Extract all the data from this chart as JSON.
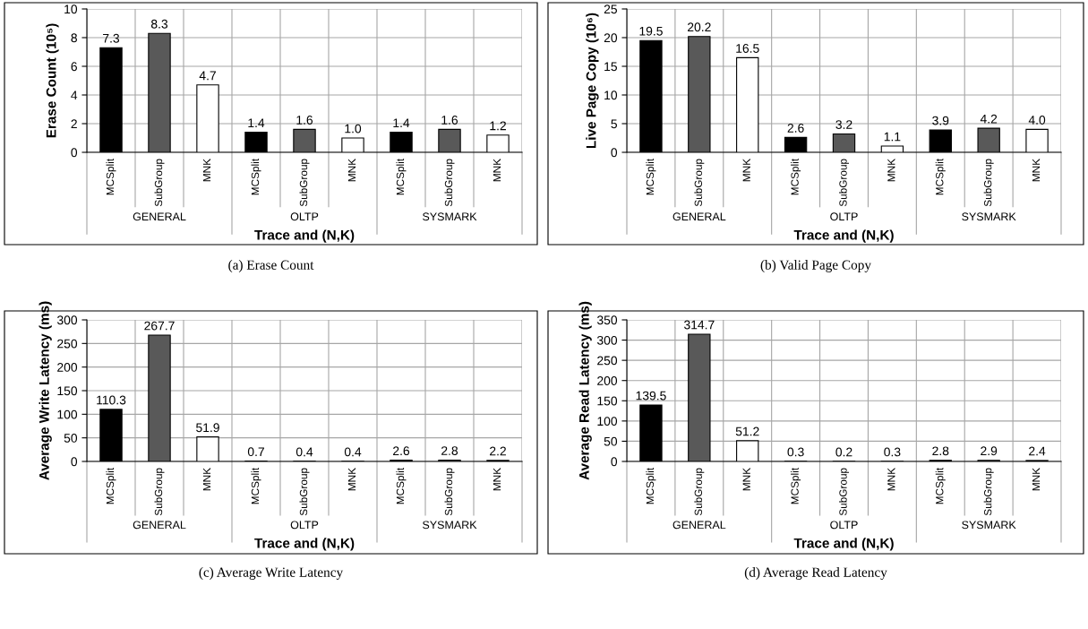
{
  "chart_data": [
    {
      "type": "bar",
      "categories": [
        "MCSplit",
        "SubGroup",
        "MNK",
        "MCSplit",
        "SubGroup",
        "MNK",
        "MCSplit",
        "SubGroup",
        "MNK"
      ],
      "values": [
        7.3,
        8.3,
        4.7,
        1.4,
        1.6,
        1.0,
        1.4,
        1.6,
        1.2
      ],
      "data_labels": true,
      "value_labels": [
        "7.3",
        "8.3",
        "4.7",
        "1.4",
        "1.6",
        "1.0",
        "1.4",
        "1.6",
        "1.2"
      ],
      "colors": [
        "#000000",
        "#595959",
        "#ffffff",
        "#000000",
        "#595959",
        "#ffffff",
        "#000000",
        "#595959",
        "#ffffff"
      ],
      "ylabel": "Erase Count (10⁵)",
      "xlabel": "Trace and (N,K)",
      "ylim": [
        0,
        10
      ],
      "yticks": [
        0,
        2,
        4,
        6,
        8,
        10
      ],
      "grid": true,
      "annotations": [
        "GENERAL",
        "OLTP",
        "SYSMARK",
        "(a) Erase Count"
      ]
    },
    {
      "type": "bar",
      "categories": [
        "MCSplit",
        "SubGroup",
        "MNK",
        "MCSplit",
        "SubGroup",
        "MNK",
        "MCSplit",
        "SubGroup",
        "MNK"
      ],
      "values": [
        19.5,
        20.2,
        16.5,
        2.6,
        3.2,
        1.1,
        3.9,
        4.2,
        4.0
      ],
      "data_labels": true,
      "value_labels": [
        "19.5",
        "20.2",
        "16.5",
        "2.6",
        "3.2",
        "1.1",
        "3.9",
        "4.2",
        "4.0"
      ],
      "colors": [
        "#000000",
        "#595959",
        "#ffffff",
        "#000000",
        "#595959",
        "#ffffff",
        "#000000",
        "#595959",
        "#ffffff"
      ],
      "ylabel": "Live Page Copy (10⁶)",
      "xlabel": "Trace and (N,K)",
      "ylim": [
        0,
        25
      ],
      "yticks": [
        0,
        5,
        10,
        15,
        20,
        25
      ],
      "grid": true,
      "annotations": [
        "GENERAL",
        "OLTP",
        "SYSMARK",
        "(b) Valid Page Copy"
      ]
    },
    {
      "type": "bar",
      "categories": [
        "MCSplit",
        "SubGroup",
        "MNK",
        "MCSplit",
        "SubGroup",
        "MNK",
        "MCSplit",
        "SubGroup",
        "MNK"
      ],
      "values": [
        110.3,
        267.7,
        51.9,
        0.7,
        0.4,
        0.4,
        2.6,
        2.8,
        2.2
      ],
      "colors": [
        "#000000",
        "#595959",
        "#ffffff",
        "#000000",
        "#595959",
        "#ffffff",
        "#000000",
        "#595959",
        "#ffffff"
      ],
      "data_labels": true,
      "ylabel": "Average Write Latency (ms)",
      "xlabel": "Trace and (N,K)",
      "ylim": [
        0,
        300
      ],
      "yticks": [
        0,
        50,
        100,
        150,
        200,
        250,
        300
      ],
      "grid": true,
      "annotations": [
        "GENERAL",
        "OLTP",
        "SYSMARK",
        "(c) Average Write Latency"
      ]
    },
    {
      "type": "bar",
      "categories": [
        "MCSplit",
        "SubGroup",
        "MNK",
        "MCSplit",
        "SubGroup",
        "MNK",
        "MCSplit",
        "SubGroup",
        "MNK"
      ],
      "values": [
        139.5,
        314.7,
        51.2,
        0.3,
        0.2,
        0.3,
        2.8,
        2.9,
        2.4
      ],
      "colors": [
        "#000000",
        "#595959",
        "#ffffff",
        "#000000",
        "#595959",
        "#ffffff",
        "#000000",
        "#595959",
        "#ffffff"
      ],
      "data_labels": true,
      "ylabel": "Average Read Latency (ms)",
      "xlabel": "Trace and (N,K)",
      "ylim": [
        0,
        350
      ],
      "yticks": [
        0,
        50,
        100,
        150,
        200,
        250,
        300,
        350
      ],
      "grid": true,
      "annotations": [
        "GENERAL",
        "OLTP",
        "SYSMARK",
        "(d) Average Read Latency"
      ]
    }
  ]
}
